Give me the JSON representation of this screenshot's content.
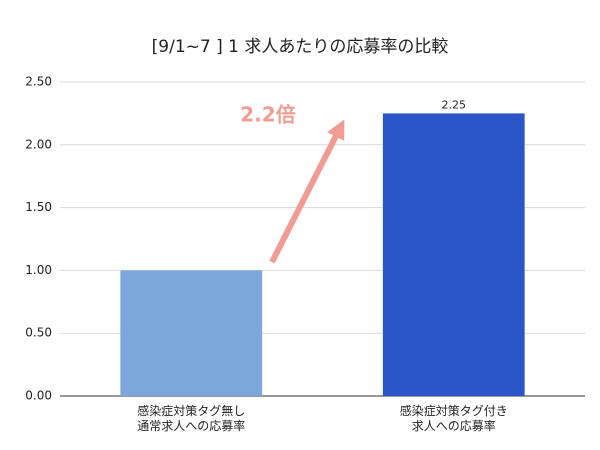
{
  "chart_data": {
    "type": "bar",
    "title": "[9/1~7 ] 1 求人あたりの応募率の比較",
    "categories": [
      "感染症対策タグ無し\n通常求人への応募率",
      "感染症対策タグ付き\n求人への応募率"
    ],
    "values": [
      1.0,
      2.25
    ],
    "value_labels": [
      null,
      "2.25"
    ],
    "colors": [
      "#7ba7db",
      "#2a56c8"
    ],
    "ylim": [
      0,
      2.5
    ],
    "yticks": [
      {
        "value": 0,
        "label": "0.00"
      },
      {
        "value": 0.5,
        "label": "0.50"
      },
      {
        "value": 1,
        "label": "1.00"
      },
      {
        "value": 1.5,
        "label": "1.50"
      },
      {
        "value": 2,
        "label": "2.00"
      },
      {
        "value": 2.5,
        "label": "2.50"
      }
    ],
    "grid": true,
    "annotation": "2.2倍"
  }
}
